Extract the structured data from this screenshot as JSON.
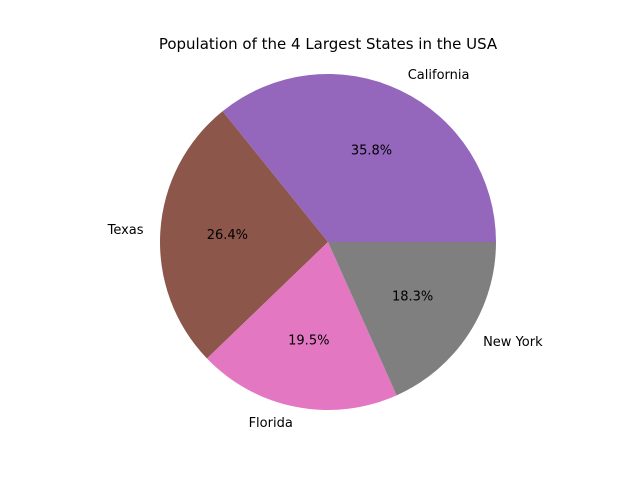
{
  "chart_data": {
    "type": "pie",
    "title": "Population of the 4 Largest States in the USA",
    "categories": [
      "California",
      "Texas",
      "Florida",
      "New York"
    ],
    "values": [
      35.8,
      26.4,
      19.5,
      18.3
    ],
    "value_labels": [
      "35.8%",
      "26.4%",
      "19.5%",
      "18.3%"
    ],
    "colors": [
      "#9467bd",
      "#8c564b",
      "#e377c2",
      "#7f7f7f"
    ],
    "start_angle_deg": 0,
    "direction": "counterclockwise",
    "legend": "none"
  }
}
